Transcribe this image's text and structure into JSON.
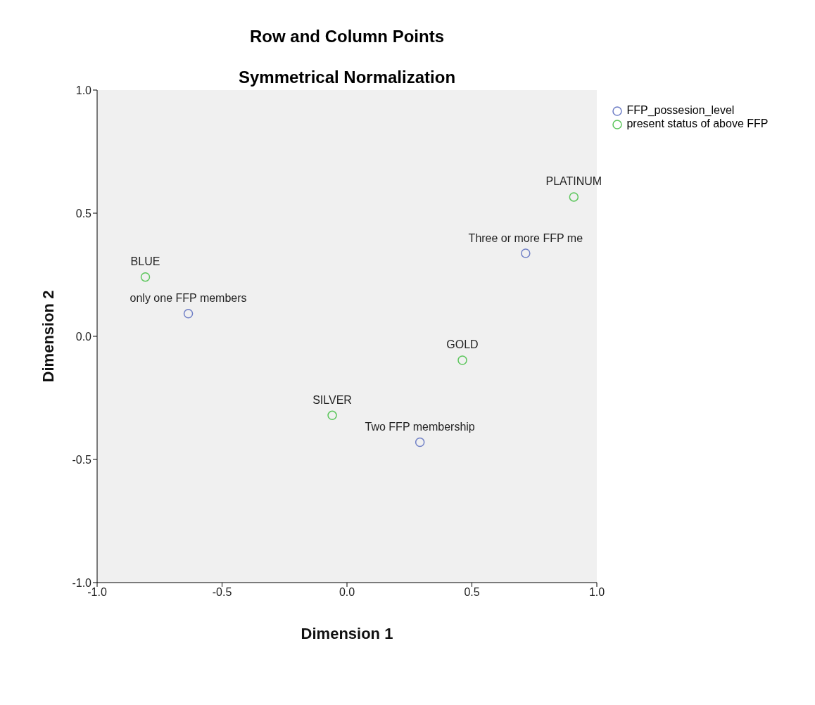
{
  "chart_data": {
    "type": "scatter",
    "title": "Row and Column Points",
    "subtitle": "Symmetrical Normalization",
    "xlabel": "Dimension 1",
    "ylabel": "Dimension 2",
    "xlim": [
      -1,
      1
    ],
    "xticks": [
      {
        "value": -1,
        "label": "-1.0"
      },
      {
        "value": -0.5,
        "label": "-0.5"
      },
      {
        "value": 0,
        "label": "0.0"
      },
      {
        "value": 0.5,
        "label": "0.5"
      },
      {
        "value": 1,
        "label": "1.0"
      }
    ],
    "ylim": [
      -1,
      1
    ],
    "yticks": [
      {
        "value": -1,
        "label": "-1.0"
      },
      {
        "value": -0.5,
        "label": "-0.5"
      },
      {
        "value": 0,
        "label": "0.0"
      },
      {
        "value": 0.5,
        "label": "0.5"
      },
      {
        "value": 1,
        "label": "1.0"
      }
    ],
    "grid": false,
    "legend": "top right",
    "marker": "circle",
    "series": [
      {
        "name": "FFP_possesion_level",
        "color": "#6f7fc6",
        "x": [
          -0.635,
          0.715,
          0.292
        ],
        "values": [
          0.092,
          0.337,
          -0.43
        ],
        "value_labels": [
          "only one FFP members",
          "Three or more FFP me",
          "Two FFP membership"
        ]
      },
      {
        "name": "present status of above FFP",
        "color": "#5cc65c",
        "x": [
          -0.807,
          0.908,
          0.462,
          -0.059
        ],
        "values": [
          0.241,
          0.566,
          -0.097,
          -0.321
        ],
        "value_labels": [
          "BLUE",
          "PLATINUM",
          "GOLD",
          "SILVER"
        ]
      }
    ]
  }
}
